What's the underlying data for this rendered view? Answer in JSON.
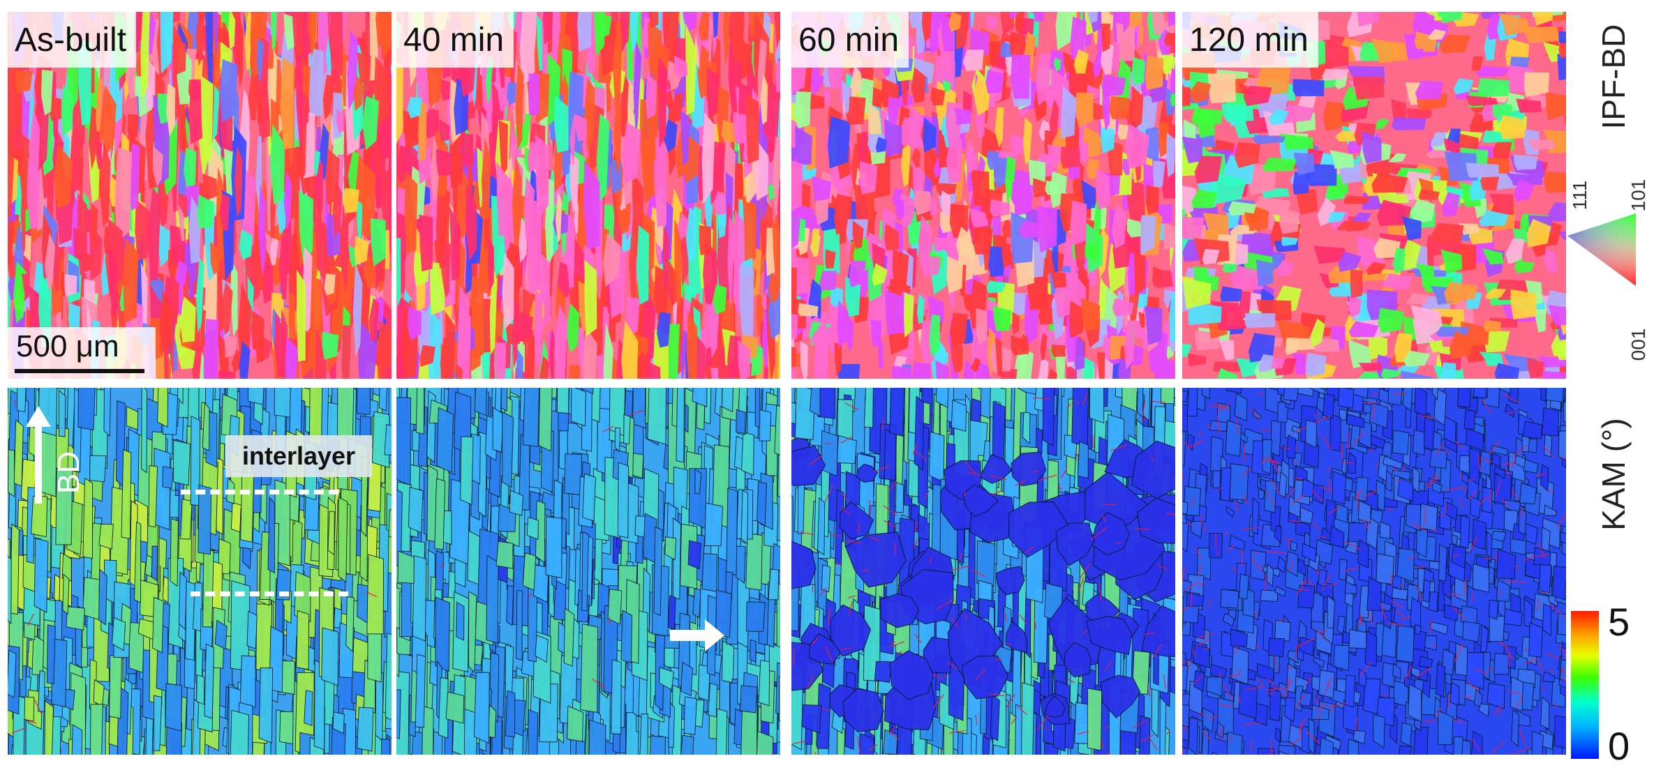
{
  "panels": {
    "labels": [
      "As-built",
      "40 min",
      "60 min",
      "120 min"
    ]
  },
  "scalebar": {
    "label": "500 μm"
  },
  "annotations": {
    "build_direction": "BD",
    "interlayer": "interlayer"
  },
  "row_titles": {
    "ipf": "IPF-BD",
    "kam": "KAM (°)"
  },
  "ipf_key": {
    "corner_111": "111",
    "corner_101": "101",
    "corner_001": "001"
  },
  "kam_colorbar": {
    "max_label": "5",
    "min_label": "0"
  },
  "colors": {
    "kam_low": "#0015ff",
    "kam_mid": "#3cff00",
    "kam_high": "#ff1a00",
    "ipf_001": "#ff2a2a",
    "ipf_101": "#22ff22",
    "ipf_111": "#3344ff",
    "grain_boundary": "#111111",
    "twin_boundary": "#e0204a"
  }
}
